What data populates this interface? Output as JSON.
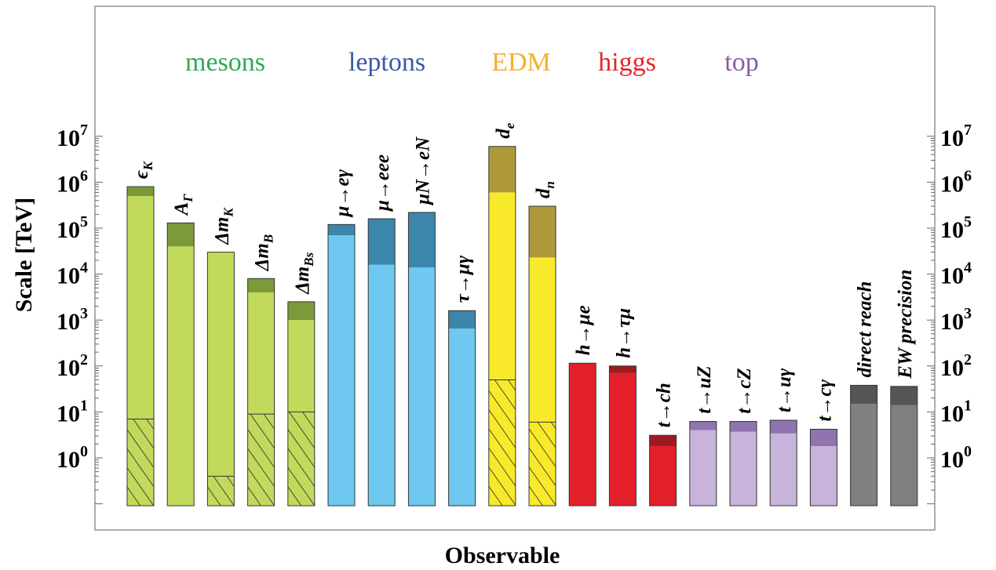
{
  "chart_data": {
    "type": "bar",
    "scale": "log",
    "ylabel": "Scale [TeV]",
    "xlabel": "Observable",
    "ylim": [
      0.1,
      10000000
    ],
    "y_ticks": [
      {
        "base": "10",
        "exp": "0",
        "value": 1
      },
      {
        "base": "10",
        "exp": "1",
        "value": 10
      },
      {
        "base": "10",
        "exp": "2",
        "value": 100
      },
      {
        "base": "10",
        "exp": "3",
        "value": 1000
      },
      {
        "base": "10",
        "exp": "4",
        "value": 10000
      },
      {
        "base": "10",
        "exp": "5",
        "value": 100000
      },
      {
        "base": "10",
        "exp": "6",
        "value": 1000000
      },
      {
        "base": "10",
        "exp": "7",
        "value": 10000000
      }
    ],
    "groups": [
      {
        "label": "mesons",
        "color": "#2eaa55"
      },
      {
        "label": "leptons",
        "color": "#3a5aa8"
      },
      {
        "label": "EDM",
        "color": "#f6b12a"
      },
      {
        "label": "higgs",
        "color": "#e3262e"
      },
      {
        "label": "top",
        "color": "#8a5ca8"
      }
    ],
    "bars": [
      {
        "label": "ϵ",
        "sub": "K",
        "group": "mesons",
        "low": 500000,
        "high": 800000,
        "hatch": 7,
        "light": "#c2da5c",
        "dark": "#7c9a3a"
      },
      {
        "label": "A",
        "sub": "Γ",
        "group": "mesons",
        "low": 40000,
        "high": 130000,
        "hatch": null,
        "light": "#c2da5c",
        "dark": "#7c9a3a"
      },
      {
        "label": "Δm",
        "sub": "K",
        "group": "mesons",
        "low": 30000,
        "high": 30000,
        "hatch": 0.4,
        "light": "#c2da5c",
        "dark": "#7c9a3a"
      },
      {
        "label": "Δm",
        "sub": "B",
        "group": "mesons",
        "low": 4000,
        "high": 8000,
        "hatch": 9,
        "light": "#c2da5c",
        "dark": "#7c9a3a"
      },
      {
        "label": "Δm",
        "sub": "Bs",
        "group": "mesons",
        "low": 1000,
        "high": 2500,
        "hatch": 10,
        "light": "#c2da5c",
        "dark": "#7c9a3a"
      },
      {
        "label": "μ→eγ",
        "sub": "",
        "group": "leptons",
        "low": 70000,
        "high": 120000,
        "hatch": null,
        "light": "#6ec8f0",
        "dark": "#3d86ab"
      },
      {
        "label": "μ→eee",
        "sub": "",
        "group": "leptons",
        "low": 16000,
        "high": 160000,
        "hatch": null,
        "light": "#6ec8f0",
        "dark": "#3d86ab"
      },
      {
        "label": "μN→eN",
        "sub": "",
        "group": "leptons",
        "low": 14000,
        "high": 220000,
        "hatch": null,
        "light": "#6ec8f0",
        "dark": "#3d86ab"
      },
      {
        "label": "τ→μγ",
        "sub": "",
        "group": "leptons",
        "low": 650,
        "high": 1600,
        "hatch": null,
        "light": "#6ec8f0",
        "dark": "#3d86ab"
      },
      {
        "label": "d",
        "sub": "e",
        "group": "EDM",
        "low": 600000,
        "high": 6000000,
        "hatch": 50,
        "light": "#f8ea2a",
        "dark": "#ae9a3a"
      },
      {
        "label": "d",
        "sub": "n",
        "group": "EDM",
        "low": 23000,
        "high": 300000,
        "hatch": 6,
        "light": "#f8ea2a",
        "dark": "#ae9a3a"
      },
      {
        "label": "h→μe",
        "sub": "",
        "group": "higgs",
        "low": 115,
        "high": 115,
        "hatch": null,
        "light": "#e3202a",
        "dark": "#9e1a22"
      },
      {
        "label": "h→τμ",
        "sub": "",
        "group": "higgs",
        "low": 70,
        "high": 100,
        "hatch": null,
        "light": "#e3202a",
        "dark": "#9e1a22"
      },
      {
        "label": "t→ch",
        "sub": "",
        "group": "higgs",
        "low": 1.8,
        "high": 3.1,
        "hatch": null,
        "light": "#e3202a",
        "dark": "#9e1a22"
      },
      {
        "label": "t→uZ",
        "sub": "",
        "group": "top",
        "low": 4,
        "high": 6.2,
        "hatch": null,
        "light": "#c8b4da",
        "dark": "#8f74b0"
      },
      {
        "label": "t→cZ",
        "sub": "",
        "group": "top",
        "low": 3.7,
        "high": 6.2,
        "hatch": null,
        "light": "#c8b4da",
        "dark": "#8f74b0"
      },
      {
        "label": "t→uγ",
        "sub": "",
        "group": "top",
        "low": 3.4,
        "high": 6.6,
        "hatch": null,
        "light": "#c8b4da",
        "dark": "#8f74b0"
      },
      {
        "label": "t→cγ",
        "sub": "",
        "group": "top",
        "low": 1.8,
        "high": 4.2,
        "hatch": null,
        "light": "#c8b4da",
        "dark": "#8f74b0"
      },
      {
        "label": "direct reach",
        "sub": "",
        "group": "",
        "low": 15,
        "high": 38,
        "hatch": null,
        "light": "#808080",
        "dark": "#555555"
      },
      {
        "label": "EW precision",
        "sub": "",
        "group": "",
        "low": 14,
        "high": 36,
        "hatch": null,
        "light": "#808080",
        "dark": "#555555"
      }
    ]
  }
}
